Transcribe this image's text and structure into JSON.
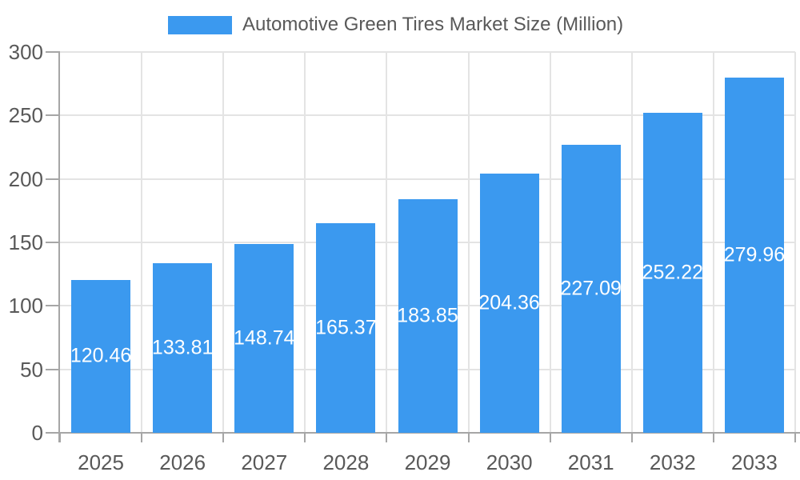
{
  "legend": {
    "label": "Automotive Green Tires Market Size (Million)"
  },
  "colors": {
    "bar": "#3b99ef",
    "axis": "#a6a6a6",
    "grid": "#e4e4e4",
    "tick_text": "#595959",
    "data_label_text": "#ffffff",
    "background": "#ffffff"
  },
  "chart_data": {
    "type": "bar",
    "title": "Automotive Green Tires Market Size (Million)",
    "categories": [
      "2025",
      "2026",
      "2027",
      "2028",
      "2029",
      "2030",
      "2031",
      "2032",
      "2033"
    ],
    "series": [
      {
        "name": "Automotive Green Tires Market Size (Million)",
        "values": [
          120.46,
          133.81,
          148.74,
          165.37,
          183.85,
          204.36,
          227.09,
          252.22,
          279.96
        ]
      }
    ],
    "data_labels": [
      "120.46",
      "133.81",
      "148.74",
      "165.37",
      "183.85",
      "204.36",
      "227.09",
      "252.22",
      "279.96"
    ],
    "xlabel": "",
    "ylabel": "",
    "ylim": [
      0,
      300
    ],
    "ytick_interval": 50,
    "yticks": [
      "0",
      "50",
      "100",
      "150",
      "200",
      "250",
      "300"
    ],
    "grid": "horizontal and vertical, light gray",
    "legend_position": "top",
    "data_label_position": "inside-center"
  }
}
